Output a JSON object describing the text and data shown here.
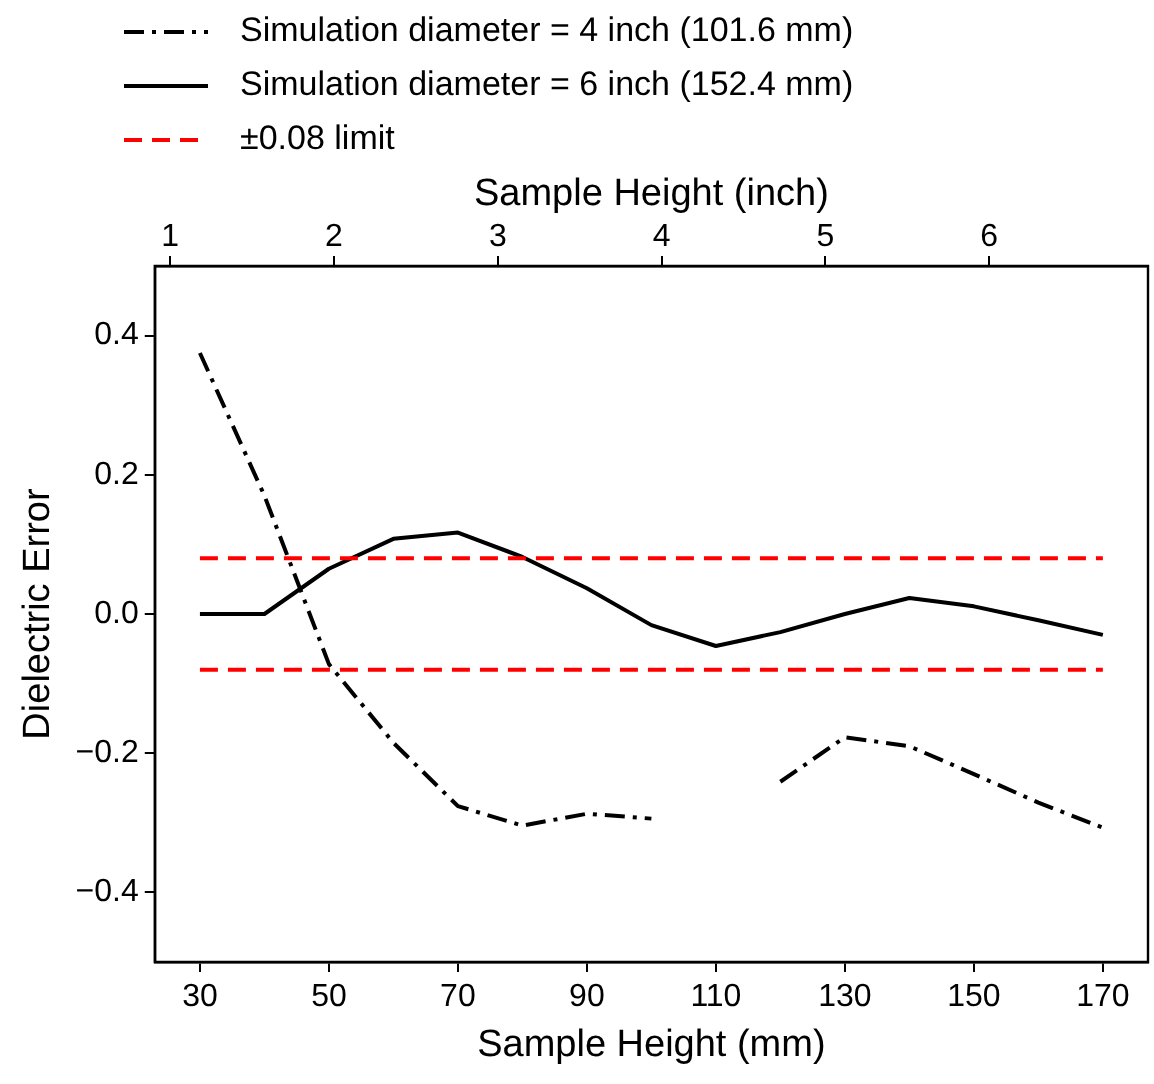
{
  "chart_data": {
    "type": "line",
    "xlabel": "Sample Height (mm)",
    "ylabel": "Dielectric Error",
    "x2label": "Sample Height (inch)",
    "x": [
      30,
      40,
      50,
      60,
      70,
      80,
      90,
      100,
      110,
      120,
      130,
      140,
      150,
      160,
      170
    ],
    "series": [
      {
        "name": "Simulation diameter = 4 inch (101.6 mm)",
        "color": "#000000",
        "line_style": "dashdot",
        "values": [
          0.375,
          0.17,
          -0.072,
          -0.185,
          -0.276,
          -0.304,
          -0.287,
          -0.294,
          null,
          -0.241,
          -0.177,
          -0.19,
          -0.23,
          -0.271,
          -0.307
        ]
      },
      {
        "name": "Simulation diameter = 6 inch (152.4 mm)",
        "color": "#000000",
        "line_style": "solid",
        "values": [
          0,
          0,
          0.065,
          0.108,
          0.117,
          0.082,
          0.037,
          -0.016,
          -0.046,
          -0.026,
          0,
          0.023,
          0.011,
          -0.009,
          -0.03
        ]
      }
    ],
    "ref_lines": [
      {
        "axis": "y",
        "value": 0.08,
        "label": "±0.08 limit",
        "color": "#ff0000",
        "line_style": "dashed"
      },
      {
        "axis": "y",
        "value": -0.08,
        "color": "#ff0000",
        "line_style": "dashed"
      }
    ],
    "xlim": [
      23,
      177
    ],
    "xticks": [
      30,
      50,
      70,
      90,
      110,
      130,
      150,
      170
    ],
    "x2lim": [
      0.906,
      6.969
    ],
    "x2ticks": [
      1,
      2,
      3,
      4,
      5,
      6
    ],
    "ylim": [
      -0.5,
      0.5
    ],
    "yticks": [
      {
        "value": -0.4,
        "label": "−0.4"
      },
      {
        "value": -0.2,
        "label": "−0.2"
      },
      {
        "value": 0,
        "label": "0.0"
      },
      0.2,
      0.4
    ],
    "grid": false,
    "legend": "top left",
    "marker": "none"
  }
}
